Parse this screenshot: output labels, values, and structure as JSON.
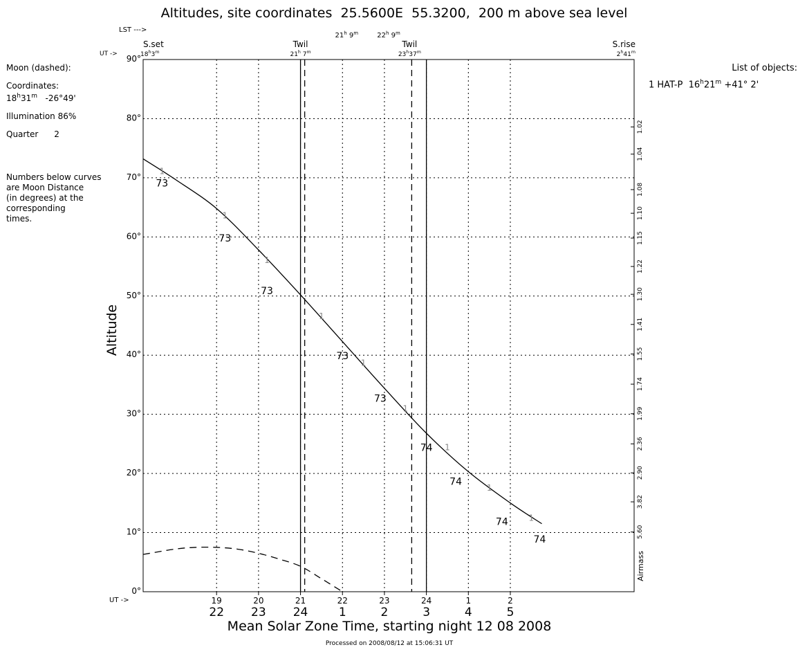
{
  "chart_data": {
    "type": "line",
    "title": "Altitudes, site coordinates  25.5600E  55.3200,  200 m above sea level",
    "xlabel": "Mean Solar Zone Time, starting night 12 08 2008",
    "ylabel": "Altitude",
    "right_axis_label": "Airmass",
    "footer": "Processed on 2008/08/12 at 15:06:31 UT",
    "xlim": [
      17.25,
      28.95
    ],
    "ylim": [
      0,
      90
    ],
    "yticks": [
      0,
      10,
      20,
      30,
      40,
      50,
      60,
      70,
      80,
      90
    ],
    "ytick_labels": [
      "0°",
      "10°",
      "20°",
      "30°",
      "40°",
      "50°",
      "60°",
      "70°",
      "80°",
      "90°"
    ],
    "grid": true,
    "x_ticks": [
      {
        "t": 19,
        "ut": "19",
        "local": "22"
      },
      {
        "t": 20,
        "ut": "20",
        "local": "23"
      },
      {
        "t": 21,
        "ut": "21",
        "local": "24"
      },
      {
        "t": 22,
        "ut": "22",
        "local": "1"
      },
      {
        "t": 23,
        "ut": "23",
        "local": "2"
      },
      {
        "t": 24,
        "ut": "24",
        "local": "3"
      },
      {
        "t": 25,
        "ut": "1",
        "local": "4"
      },
      {
        "t": 26,
        "ut": "2",
        "local": "5"
      }
    ],
    "ut_prefix": "UT ->",
    "airmass_ticks": [
      {
        "alt": 78.6,
        "label": "1.02"
      },
      {
        "alt": 74.0,
        "label": "1.04"
      },
      {
        "alt": 68.0,
        "label": "1.08"
      },
      {
        "alt": 64.0,
        "label": "1.10"
      },
      {
        "alt": 59.8,
        "label": "1.15"
      },
      {
        "alt": 55.0,
        "label": "1.22"
      },
      {
        "alt": 50.3,
        "label": "1.30"
      },
      {
        "alt": 45.2,
        "label": "1.41"
      },
      {
        "alt": 40.2,
        "label": "1.55"
      },
      {
        "alt": 35.1,
        "label": "1.74"
      },
      {
        "alt": 30.1,
        "label": "1.99"
      },
      {
        "alt": 25.0,
        "label": "2.36"
      },
      {
        "alt": 20.1,
        "label": "2.90"
      },
      {
        "alt": 15.2,
        "label": "3.82"
      },
      {
        "alt": 10.1,
        "label": "5.60"
      }
    ],
    "events": [
      {
        "name": "S.set",
        "t": 17.25,
        "time_h": "18",
        "time_m": "3",
        "line": "none"
      },
      {
        "name": "Twil",
        "t": 21.0,
        "time_h": "21",
        "time_m": " 7",
        "line": "solid"
      },
      {
        "name": "Twil",
        "t": 23.6,
        "time_h": "23",
        "time_m": "37",
        "line": "none"
      },
      {
        "name": "S.rise",
        "t": 28.95,
        "time_h": "2",
        "time_m": "41",
        "line": "none"
      }
    ],
    "lst_label": "LST --->",
    "lst_ticks": [
      {
        "t": 22.1,
        "h": "21",
        "m": "9"
      },
      {
        "t": 23.1,
        "h": "22",
        "m": "9"
      }
    ],
    "dashed_verticals_t": [
      21.1,
      23.65
    ],
    "solid_verticals_t": [
      21.0,
      24.0
    ],
    "series": [
      {
        "name": "1",
        "style": "solid",
        "x": [
          17.25,
          18.0,
          19.0,
          20.0,
          21.0,
          22.0,
          23.0,
          24.0,
          25.0,
          26.0,
          26.75
        ],
        "values": [
          73.2,
          69.8,
          64.8,
          57.8,
          50.2,
          42.3,
          34.4,
          26.8,
          20.3,
          15.0,
          11.5
        ],
        "markers": [
          {
            "t": 17.7,
            "alt": 71.2,
            "label": "1"
          },
          {
            "t": 19.2,
            "alt": 63.7,
            "label": "1"
          },
          {
            "t": 20.2,
            "alt": 56.2,
            "label": "1"
          },
          {
            "t": 21.5,
            "alt": 46.7,
            "label": "1"
          },
          {
            "t": 22.5,
            "alt": 38.8,
            "label": "1"
          },
          {
            "t": 23.5,
            "alt": 31.1,
            "label": "1"
          },
          {
            "t": 24.5,
            "alt": 24.5,
            "label": "1"
          },
          {
            "t": 25.5,
            "alt": 17.7,
            "label": "1"
          },
          {
            "t": 26.5,
            "alt": 12.6,
            "label": "1"
          }
        ],
        "moon_distance_labels": [
          {
            "t": 17.7,
            "alt": 69.2,
            "label": "73"
          },
          {
            "t": 19.2,
            "alt": 59.9,
            "label": "73"
          },
          {
            "t": 20.2,
            "alt": 51.0,
            "label": "73"
          },
          {
            "t": 22.0,
            "alt": 40.0,
            "label": "73"
          },
          {
            "t": 22.9,
            "alt": 32.8,
            "label": "73"
          },
          {
            "t": 24.0,
            "alt": 24.5,
            "label": "74"
          },
          {
            "t": 24.7,
            "alt": 18.8,
            "label": "74"
          },
          {
            "t": 25.8,
            "alt": 12.0,
            "label": "74"
          },
          {
            "t": 26.7,
            "alt": 9.0,
            "label": "74"
          }
        ]
      },
      {
        "name": "Moon (dashed)",
        "style": "dashed",
        "x": [
          17.25,
          18.0,
          18.5,
          19.0,
          19.5,
          20.0,
          20.5,
          21.0,
          21.5,
          22.0
        ],
        "values": [
          6.3,
          7.2,
          7.5,
          7.5,
          7.2,
          6.5,
          5.5,
          4.3,
          2.2,
          0.0
        ]
      }
    ]
  },
  "left_panel": {
    "moon": "Moon (dashed):",
    "coords_label": "Coordinates:",
    "coords_ra_h": "18",
    "coords_ra_m": "31",
    "coords_dec": "-26°49'",
    "illumination": "Illumination  86%",
    "quarter": "Quarter      2",
    "note_lines": [
      "Numbers below curves",
      "are Moon Distance",
      "(in degrees) at the",
      "corresponding",
      "times."
    ]
  },
  "right_panel": {
    "title": "List of objects:",
    "entry_prefix": "1 HAT-P  16",
    "entry_min": "21",
    "entry_dec": "+41° 2'"
  }
}
